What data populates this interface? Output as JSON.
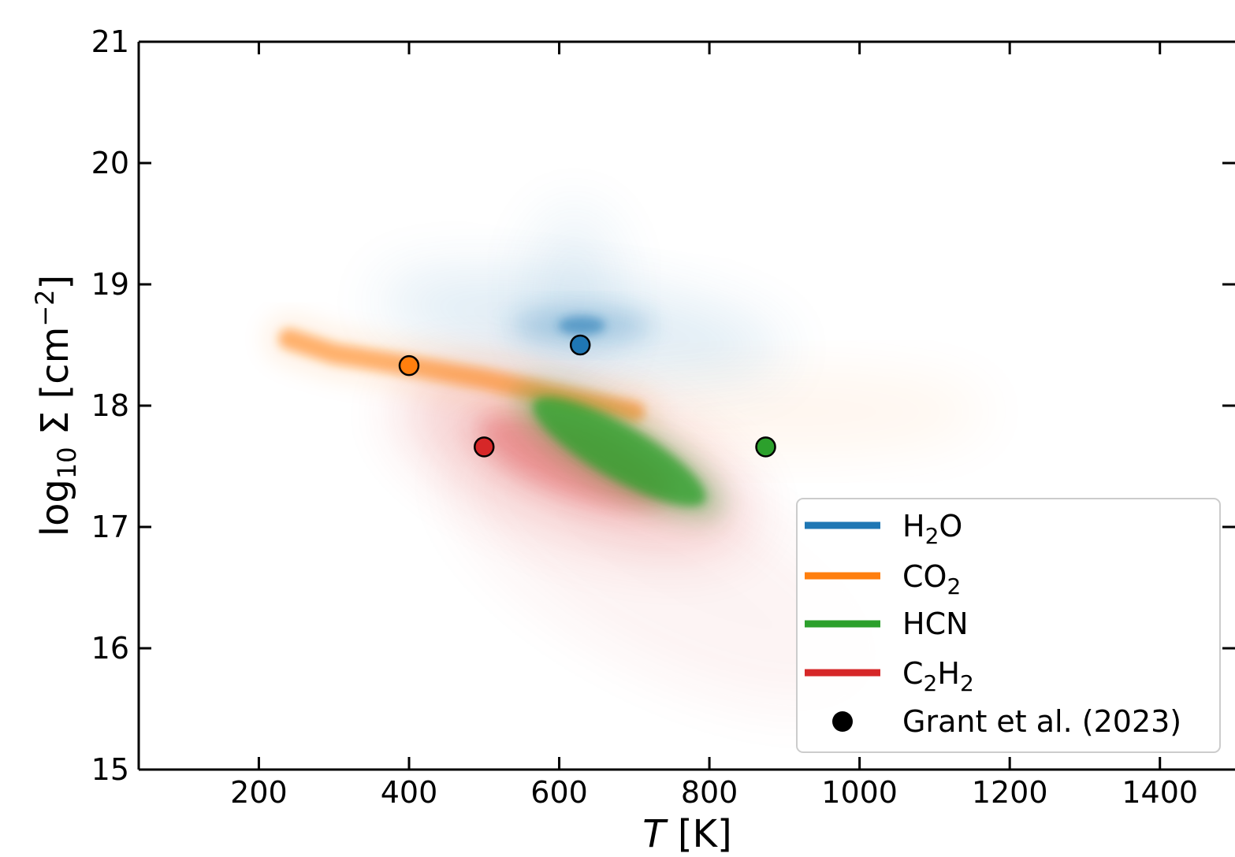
{
  "chart_data": {
    "type": "scatter",
    "xlabel": {
      "italic": "T",
      "rest": "[K]"
    },
    "ylabel": {
      "prefix": "log",
      "sub": "10",
      "rest": "Σ [cm",
      "sup": "−2",
      "close": "]"
    },
    "xlim": [
      40,
      1500
    ],
    "ylim": [
      15,
      21
    ],
    "xticks": [
      200,
      400,
      600,
      800,
      1000,
      1200,
      1400
    ],
    "xtick_labels": [
      "200",
      "400",
      "600",
      "800",
      "1000",
      "1200",
      "1400"
    ],
    "yticks": [
      15,
      16,
      17,
      18,
      19,
      20,
      21
    ],
    "ytick_labels": [
      "15",
      "16",
      "17",
      "18",
      "19",
      "20",
      "21"
    ],
    "grid": false,
    "legend_position": "lower-right",
    "series": [
      {
        "name": {
          "base": "H",
          "sub": "2",
          "tail": "O"
        },
        "color": "#1f77b4",
        "posterior": {
          "x": 630,
          "y": 18.66
        },
        "marker": {
          "x": 628,
          "y": 18.5
        }
      },
      {
        "name": {
          "base": "CO",
          "sub": "2",
          "tail": ""
        },
        "color": "#ff7f0e",
        "posterior_curve": [
          [
            240,
            18.55
          ],
          [
            300,
            18.43
          ],
          [
            400,
            18.33
          ],
          [
            500,
            18.22
          ],
          [
            600,
            18.08
          ],
          [
            700,
            17.95
          ]
        ],
        "marker": {
          "x": 400,
          "y": 18.33
        }
      },
      {
        "name": {
          "base": "HCN",
          "sub": "",
          "tail": ""
        },
        "color": "#2ca02c",
        "posterior": {
          "x": 680,
          "y": 17.62
        },
        "marker": {
          "x": 875,
          "y": 17.66
        }
      },
      {
        "name": {
          "base": "C",
          "sub": "2",
          "tail": "H",
          "sub2": "2"
        },
        "color": "#d62728",
        "posterior": {
          "x": 620,
          "y": 17.55
        },
        "marker": {
          "x": 500,
          "y": 17.66
        }
      }
    ],
    "marker_legend": "Grant et al. (2023)"
  }
}
